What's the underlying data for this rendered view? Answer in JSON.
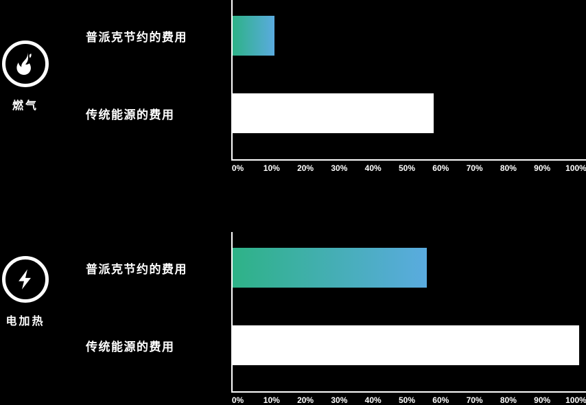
{
  "colors": {
    "background": "#000000",
    "text": "#ffffff",
    "axis": "#ffffff",
    "bar_white": "#ffffff",
    "bar_gradient_start": "#2eb287",
    "bar_gradient_end": "#5aabdf"
  },
  "axis_tick_labels": [
    "0%",
    "10%",
    "20%",
    "30%",
    "40%",
    "50%",
    "60%",
    "70%",
    "80%",
    "90%",
    "100%"
  ],
  "groups": [
    {
      "icon": "flame-icon",
      "label": "燃气"
    },
    {
      "icon": "lightning-icon",
      "label": "电加热"
    }
  ],
  "chart_data": [
    {
      "type": "bar",
      "orientation": "horizontal",
      "group_label": "燃气",
      "categories": [
        "普派克节约的费用",
        "传统能源的费用"
      ],
      "values": [
        12,
        58
      ],
      "value_unit": "%",
      "xlim": [
        0,
        100
      ],
      "x_tick_labels": [
        "0%",
        "10%",
        "20%",
        "30%",
        "40%",
        "50%",
        "60%",
        "70%",
        "80%",
        "90%",
        "100%"
      ],
      "bar_styles": [
        "green-blue-gradient",
        "solid-white"
      ],
      "grid": false,
      "legend": false
    },
    {
      "type": "bar",
      "orientation": "horizontal",
      "group_label": "电加热",
      "categories": [
        "普派克节约的费用",
        "传统能源的费用"
      ],
      "values": [
        56,
        100
      ],
      "value_unit": "%",
      "xlim": [
        0,
        100
      ],
      "x_tick_labels": [
        "0%",
        "10%",
        "20%",
        "30%",
        "40%",
        "50%",
        "60%",
        "70%",
        "80%",
        "90%",
        "100%"
      ],
      "bar_styles": [
        "green-blue-gradient",
        "solid-white"
      ],
      "grid": false,
      "legend": false
    }
  ]
}
